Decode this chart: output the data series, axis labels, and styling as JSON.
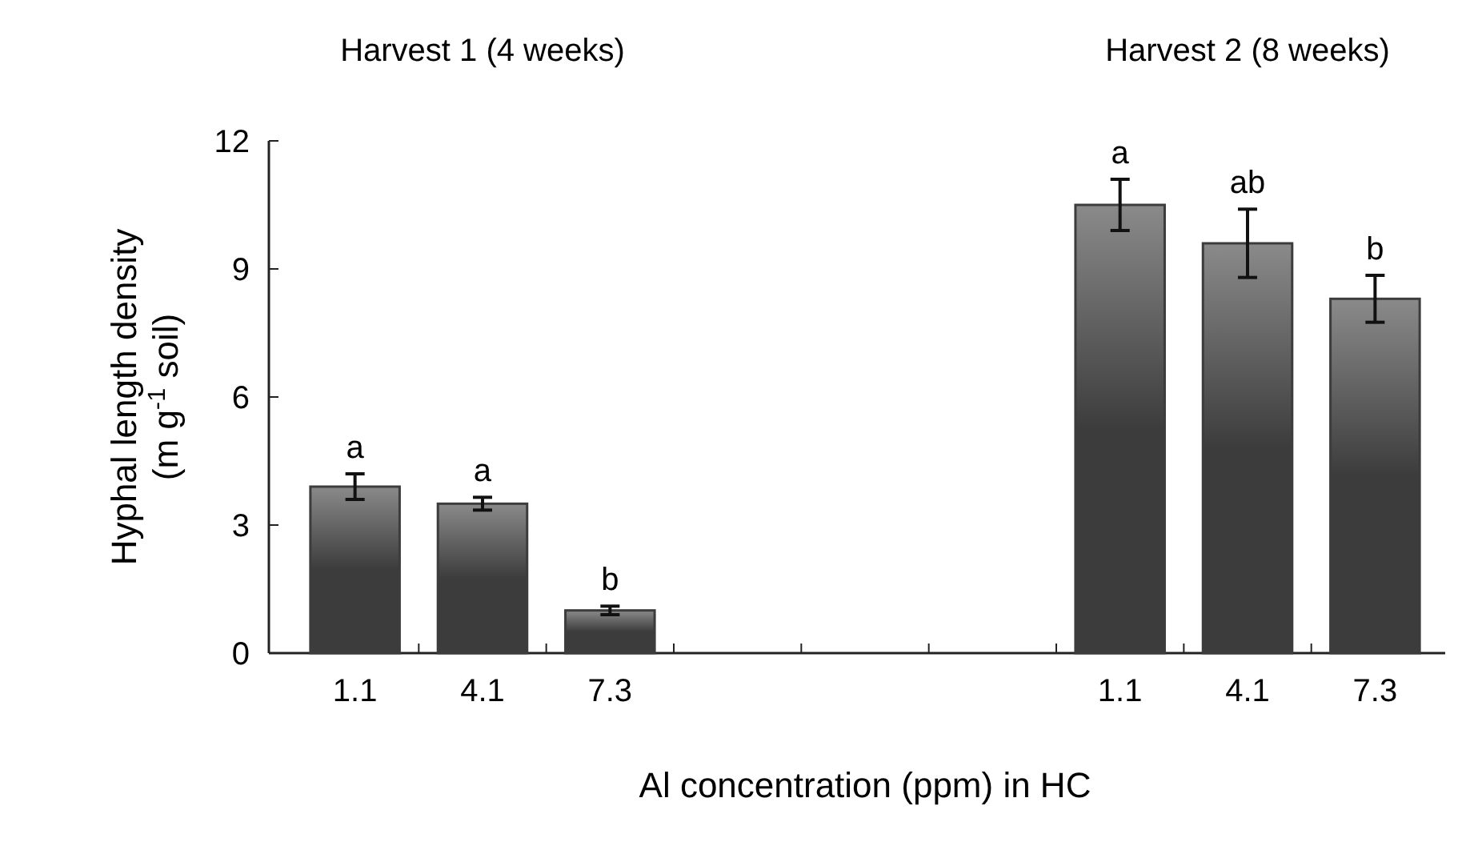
{
  "chart_data": {
    "type": "bar",
    "xlabel": "Al concentration (ppm) in HC",
    "ylabel": "Hyphal length density (m g$^{-1}$ soil)",
    "categories": [
      "1.1",
      "4.1",
      "7.3",
      null,
      null,
      null,
      "1.1",
      "4.1",
      "7.3"
    ],
    "values": [
      3.9,
      3.5,
      1.0,
      null,
      null,
      null,
      10.5,
      9.6,
      8.3
    ],
    "errors": [
      0.3,
      0.15,
      0.1,
      null,
      null,
      null,
      0.6,
      0.8,
      0.55
    ],
    "value_labels": [
      "a",
      "a",
      "b",
      null,
      null,
      null,
      "a",
      "ab",
      "b"
    ],
    "color": "#3c3c3c",
    "ylim": [
      0,
      12
    ],
    "yticks": [
      0,
      3,
      6,
      9,
      12
    ],
    "grid": false,
    "annotations": [
      "Harvest 1 (4 weeks)",
      "Harvest 2 (8 weeks)"
    ]
  }
}
